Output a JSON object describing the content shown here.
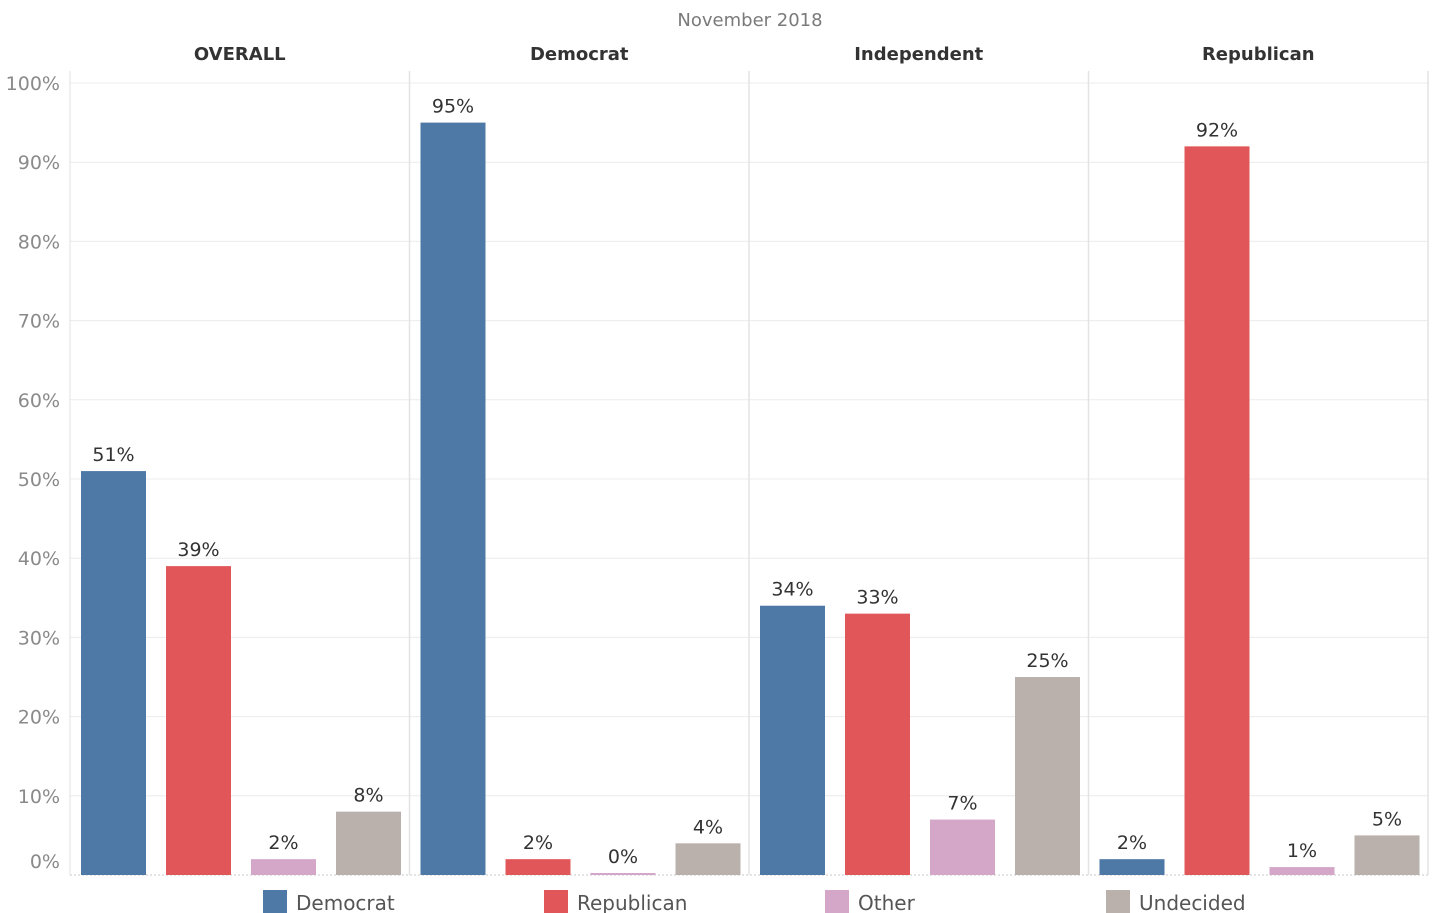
{
  "chart_data": {
    "type": "bar",
    "title": "November 2018",
    "xlabel": "",
    "ylabel": "",
    "ylim": [
      0,
      100
    ],
    "y_ticks": [
      "0%",
      "10%",
      "20%",
      "30%",
      "40%",
      "50%",
      "60%",
      "70%",
      "80%",
      "90%",
      "100%"
    ],
    "grid": true,
    "legend_position": "bottom",
    "categories": [
      "OVERALL",
      "Democrat",
      "Independent",
      "Republican"
    ],
    "series": [
      {
        "name": "Democrat",
        "color": "#4e79a7",
        "values": [
          51,
          95,
          34,
          2
        ]
      },
      {
        "name": "Republican",
        "color": "#e15759",
        "values": [
          39,
          2,
          33,
          92
        ]
      },
      {
        "name": "Other",
        "color": "#d4a6c8",
        "values": [
          2,
          0,
          7,
          1
        ]
      },
      {
        "name": "Undecided",
        "color": "#bab0ac",
        "values": [
          8,
          4,
          25,
          5
        ]
      }
    ],
    "data_labels": [
      [
        "51%",
        "95%",
        "34%",
        "2%"
      ],
      [
        "39%",
        "2%",
        "33%",
        "92%"
      ],
      [
        "2%",
        "0%",
        "7%",
        "1%"
      ],
      [
        "8%",
        "4%",
        "25%",
        "5%"
      ]
    ]
  }
}
